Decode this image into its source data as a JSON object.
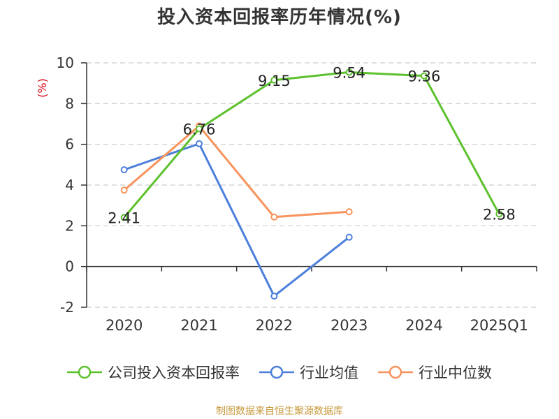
{
  "title": "投入资本回报率历年情况(%)",
  "source": "制图数据来自恒生聚源数据库",
  "chart_data": {
    "type": "line",
    "title": "投入资本回报率历年情况(%)",
    "ylabel": "(%)",
    "xlabel": "",
    "categories": [
      "2020",
      "2021",
      "2022",
      "2023",
      "2024",
      "2025Q1"
    ],
    "ylim": [
      -2,
      10
    ],
    "yticks": [
      -2,
      0,
      2,
      4,
      6,
      8,
      10
    ],
    "grid": true,
    "legend_position": "bottom",
    "series": [
      {
        "name": "公司投入资本回报率",
        "color": "#5cc12d",
        "values": [
          2.41,
          6.76,
          9.15,
          9.54,
          9.36,
          2.58
        ],
        "labels": [
          "2.41",
          "6.76",
          "9.15",
          "9.54",
          "9.36",
          "2.58"
        ]
      },
      {
        "name": "行业均值",
        "color": "#4d7fdb",
        "values": [
          4.75,
          6.03,
          -1.45,
          1.44,
          null,
          null
        ]
      },
      {
        "name": "行业中位数",
        "color": "#f7935c",
        "values": [
          3.75,
          6.9,
          2.43,
          2.69,
          null,
          null
        ]
      }
    ]
  }
}
